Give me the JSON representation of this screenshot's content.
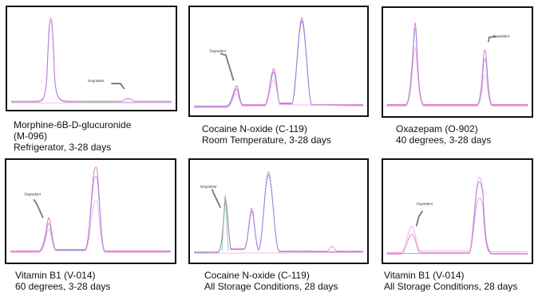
{
  "colors": {
    "border": "#111111",
    "pointer": "#808080",
    "trace_main": "#e27ad0",
    "trace_alt": "#8a86e0",
    "trace_soft": "#f2b8e3",
    "trace_green": "#7ec97a"
  },
  "panels": [
    {
      "id": "p1",
      "degradant_label": "Degradant",
      "caption": [
        "Morphine-6B-D-glucuronide",
        "(M-096)",
        "Refrigerator, 3-28 days"
      ]
    },
    {
      "id": "p2",
      "degradant_label": "Degradant",
      "caption": [
        "Cocaine N-oxide (C-119)",
        "Room Temperature, 3-28 days"
      ]
    },
    {
      "id": "p3",
      "degradant_label": "Degradant",
      "caption": [
        "Oxazepam (O-902)",
        "40 degrees, 3-28 days"
      ]
    },
    {
      "id": "p4",
      "degradant_label": "Degradant",
      "caption": [
        "Vitamin B1 (V-014)",
        "60 degrees, 3-28 days"
      ]
    },
    {
      "id": "p5",
      "degradant_label": "Degradant",
      "caption": [
        "Cocaine N-oxide (C-119)",
        "All Storage Conditions, 28 days"
      ]
    },
    {
      "id": "p6",
      "degradant_label": "Degradant",
      "caption": [
        "Vitamin B1 (V-014)",
        "All Storage Conditions, 28 days"
      ]
    }
  ]
}
